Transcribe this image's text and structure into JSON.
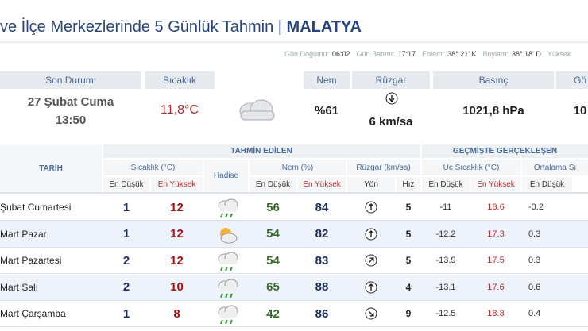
{
  "header": {
    "title": "ve İlçe Merkezlerinde 5 Günlük Tahmin | ",
    "city": "MALATYA"
  },
  "info": [
    {
      "label": "Gün Doğumu:",
      "value": "06:02"
    },
    {
      "label": "Gün Batımı:",
      "value": "17:17"
    },
    {
      "label": "Enlem:",
      "value": "38° 21' K"
    },
    {
      "label": "Boylam:",
      "value": "38° 18' D"
    },
    {
      "label": "Yüksek"
    }
  ],
  "current": {
    "headers": [
      "Son Durum",
      "Sıcaklık",
      "Nem",
      "Rüzgar",
      "Basınç",
      "Gö"
    ],
    "note_mark": "*",
    "date": "27 Şubat Cuma",
    "time": "13:50",
    "temperature": "11,8°C",
    "humidity": "%61",
    "wind": "6 km/sa",
    "pressure": "1021,8 hPa",
    "extra": "10"
  },
  "table": {
    "date_header": "TARİH",
    "group_headers": [
      "TAHMİN EDİLEN",
      "GEÇMİŞTE GERÇEKLEŞEN"
    ],
    "sub_headers": [
      "Sıcaklık (°C)",
      "Hadise",
      "Nem (%)",
      "Rüzgar (km/sa)",
      "Uç Sıcaklık (°C)",
      "Ortalama Sı"
    ],
    "col_headers": [
      "En Düşük",
      "En Yüksek",
      "En Düşük",
      "En Yüksek",
      "Yön",
      "Hız",
      "En Düşük",
      "En Yüksek",
      "En Düşük"
    ],
    "rows": [
      {
        "date": "Şubat Cumartesi",
        "low": 1,
        "high": 12,
        "icon": "rain",
        "hum_low": 56,
        "hum_high": 84,
        "wind_dir": 0,
        "wind_speed": 5,
        "past_low": -11,
        "past_high": 18.6,
        "avg_low": -0.2
      },
      {
        "date": "Mart Pazar",
        "low": 1,
        "high": 12,
        "icon": "sun-cloud",
        "hum_low": 54,
        "hum_high": 82,
        "wind_dir": 0,
        "wind_speed": 5,
        "past_low": -12.2,
        "past_high": 17.3,
        "avg_low": 0.3
      },
      {
        "date": "Mart Pazartesi",
        "low": 2,
        "high": 12,
        "icon": "rain",
        "hum_low": 54,
        "hum_high": 83,
        "wind_dir": 45,
        "wind_speed": 5,
        "past_low": -13.9,
        "past_high": 17.5,
        "avg_low": 0.3
      },
      {
        "date": "Mart Salı",
        "low": 2,
        "high": 10,
        "icon": "rain",
        "hum_low": 65,
        "hum_high": 88,
        "wind_dir": 0,
        "wind_speed": 4,
        "past_low": -13.1,
        "past_high": 17.6,
        "avg_low": 0.6
      },
      {
        "date": "Mart Çarşamba",
        "low": 1,
        "high": 8,
        "icon": "rain",
        "hum_low": 42,
        "hum_high": 86,
        "wind_dir": 135,
        "wind_speed": 9,
        "past_low": -12.5,
        "past_high": 18.8,
        "avg_low": 0.4
      }
    ]
  }
}
